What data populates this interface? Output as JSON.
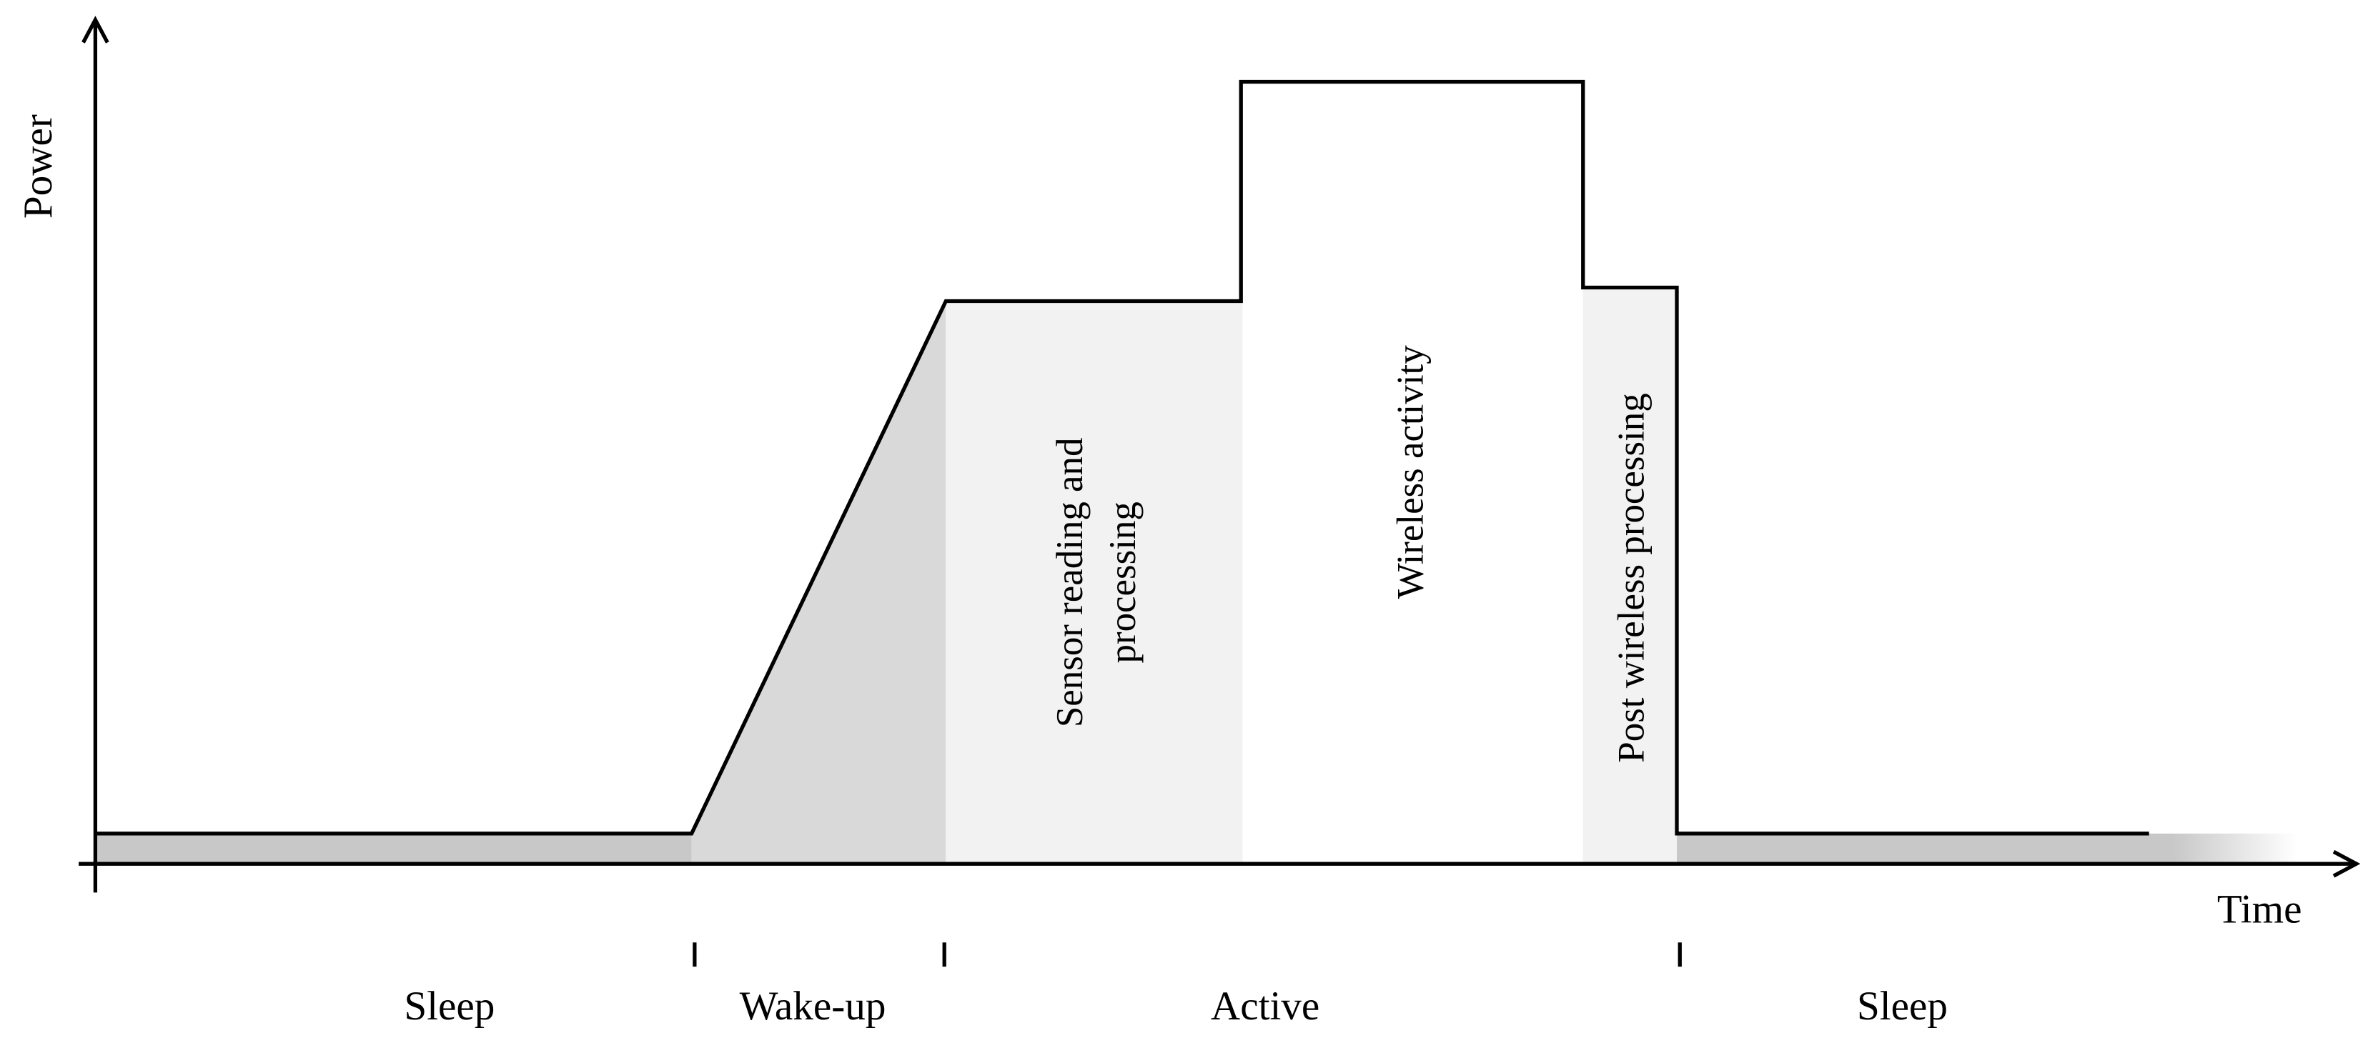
{
  "axes": {
    "y_label": "Power",
    "x_label": "Time"
  },
  "regions": [
    {
      "label_lines": [
        "Sensor reading and",
        "processing"
      ]
    },
    {
      "label_lines": [
        "Wireless activity"
      ]
    },
    {
      "label_lines": [
        "Post wireless processing"
      ]
    }
  ],
  "phases": [
    "Sleep",
    "Wake-up",
    "Active",
    "Sleep"
  ]
}
